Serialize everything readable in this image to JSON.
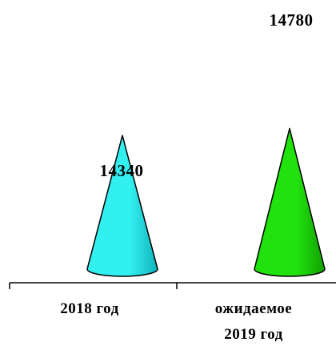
{
  "chart_data": {
    "type": "bar",
    "bar_shape": "cone",
    "categories": [
      [
        "2018 год"
      ],
      [
        "ожидаемое",
        "2019 год"
      ]
    ],
    "values": [
      14340,
      14780
    ],
    "data_labels": [
      "14340",
      "14780"
    ],
    "colors": [
      "#33f0f0",
      "#22e20e"
    ],
    "shadow_colors": [
      "#0fb4bc",
      "#10a000"
    ],
    "title": "",
    "xlabel": "",
    "ylabel": "",
    "grid": false,
    "legend": "none"
  }
}
